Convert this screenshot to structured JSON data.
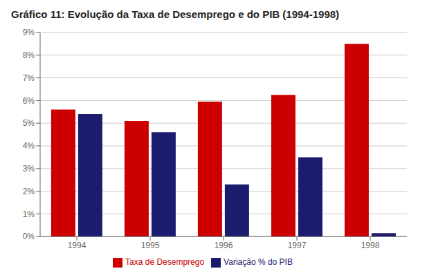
{
  "chart_data": {
    "type": "bar",
    "title": "Gráfico 11: Evolução da Taxa de Desemprego e do PIB (1994-1998)",
    "categories": [
      "1994",
      "1995",
      "1996",
      "1997",
      "1998"
    ],
    "series": [
      {
        "name": "Taxa de Desemprego",
        "color": "#CC0000",
        "values": [
          5.6,
          5.1,
          5.95,
          6.25,
          8.5
        ]
      },
      {
        "name": "Variação % do PIB",
        "color": "#1C1C6E",
        "values": [
          5.4,
          4.6,
          2.3,
          3.5,
          0.15
        ]
      }
    ],
    "ylim": [
      0,
      9
    ],
    "yticks": [
      {
        "value": 0,
        "label": "0%"
      },
      {
        "value": 1,
        "label": "1%"
      },
      {
        "value": 2,
        "label": "2%"
      },
      {
        "value": 3,
        "label": "3%"
      },
      {
        "value": 4,
        "label": "4%"
      },
      {
        "value": 5,
        "label": "5%"
      },
      {
        "value": 6,
        "label": "6%"
      },
      {
        "value": 7,
        "label": "7%"
      },
      {
        "value": 8,
        "label": "8%"
      },
      {
        "value": 9,
        "label": "9%"
      }
    ],
    "grid": true,
    "legend": "bottom"
  }
}
